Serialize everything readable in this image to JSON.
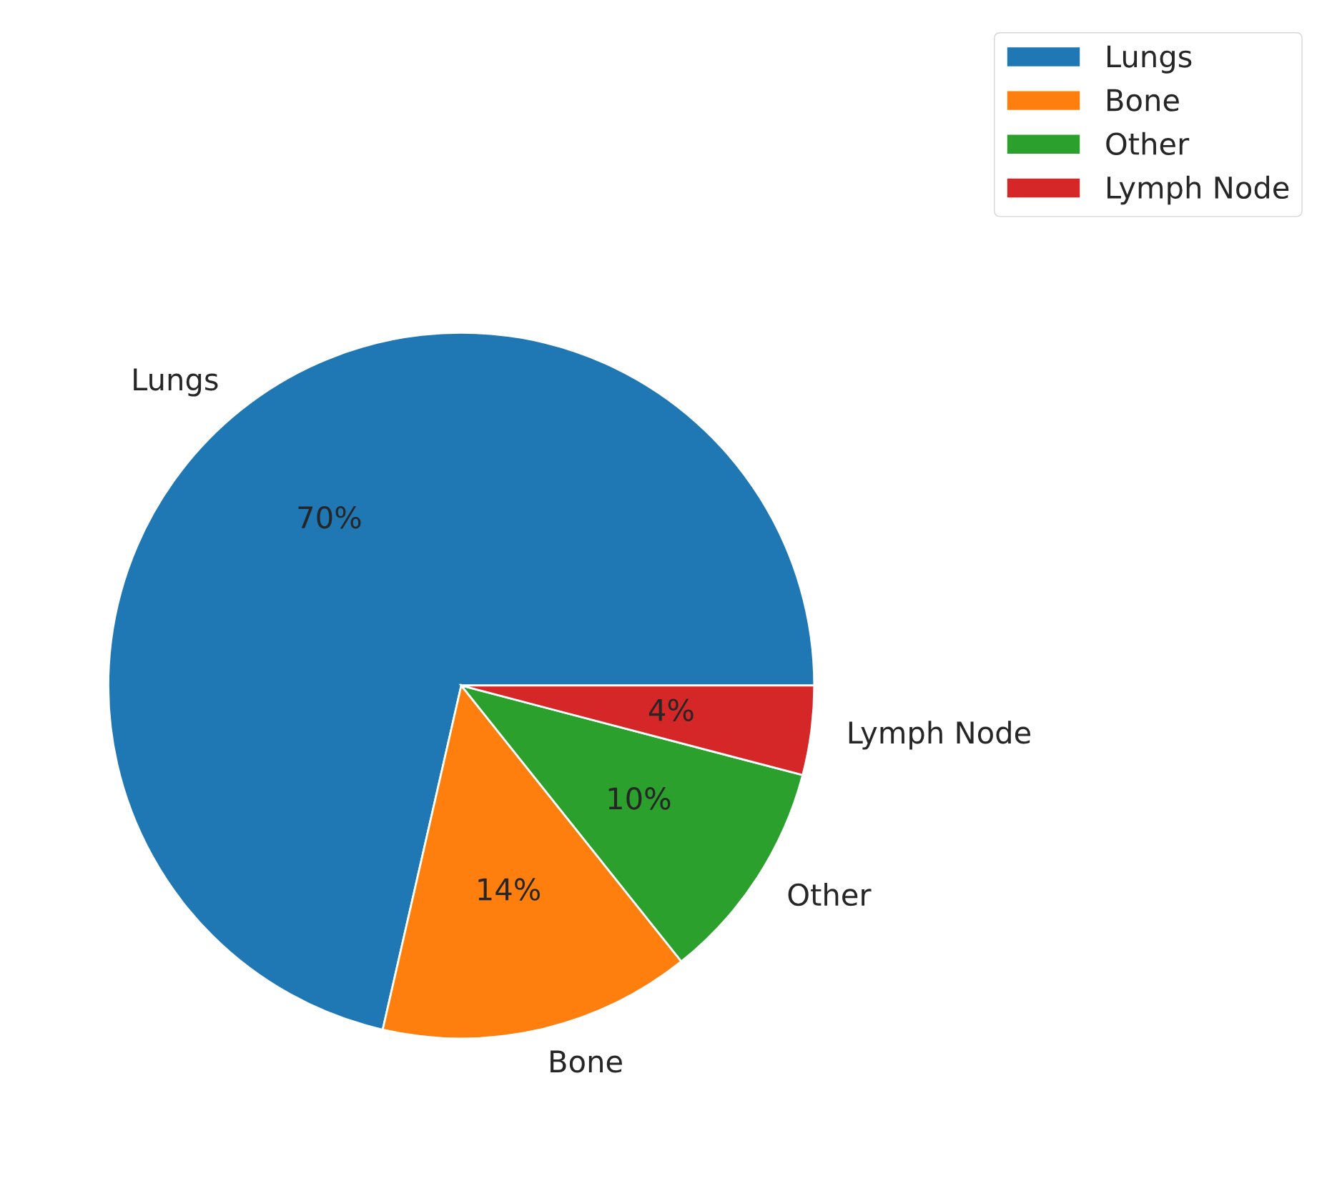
{
  "chart_data": {
    "type": "pie",
    "categories": [
      "Lungs",
      "Bone",
      "Other",
      "Lymph Node"
    ],
    "values": [
      70,
      14,
      10,
      4
    ],
    "value_labels": [
      "70%",
      "14%",
      "10%",
      "4%"
    ],
    "colors": [
      "#1f77b4",
      "#ff7f0e",
      "#2ca02c",
      "#d62728"
    ],
    "legend": "top right"
  }
}
